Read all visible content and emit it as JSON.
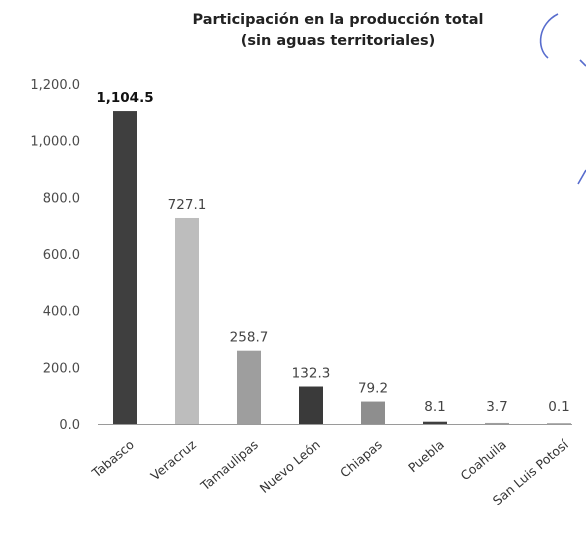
{
  "chart_data": {
    "type": "bar",
    "title": "Participación en la producción total",
    "subtitle": "(sin aguas territoriales)",
    "xlabel": "",
    "ylabel": "",
    "categories": [
      "Tabasco",
      "Veracruz",
      "Tamaulipas",
      "Nuevo León",
      "Chiapas",
      "Puebla",
      "Coahuila",
      "San Luis Potosí"
    ],
    "values": [
      1104.5,
      727.1,
      258.7,
      132.3,
      79.2,
      8.1,
      3.7,
      0.1
    ],
    "value_labels": [
      "1,104.5",
      "727.1",
      "258.7",
      "132.3",
      "79.2",
      "8.1",
      "3.7",
      "0.1"
    ],
    "bold_value_labels": [
      true,
      false,
      false,
      false,
      false,
      false,
      false,
      false
    ],
    "ylim": [
      0,
      1200
    ],
    "yticks": [
      0,
      200,
      400,
      600,
      800,
      1000,
      1200
    ],
    "ytick_labels": [
      "0.0",
      "200.0",
      "400.0",
      "600.0",
      "800.0",
      "1,000.0",
      "1,200.0"
    ],
    "grid": false,
    "legend": "none",
    "bar_colors": [
      "#3f3f3f",
      "#bdbdbd",
      "#9e9e9e",
      "#3a3a3a",
      "#8e8e8e",
      "#3f3f3f",
      "#9e9e9e",
      "#9e9e9e"
    ],
    "axis_color": "#9a9a9a"
  },
  "decoration_color": "#3a52c4"
}
